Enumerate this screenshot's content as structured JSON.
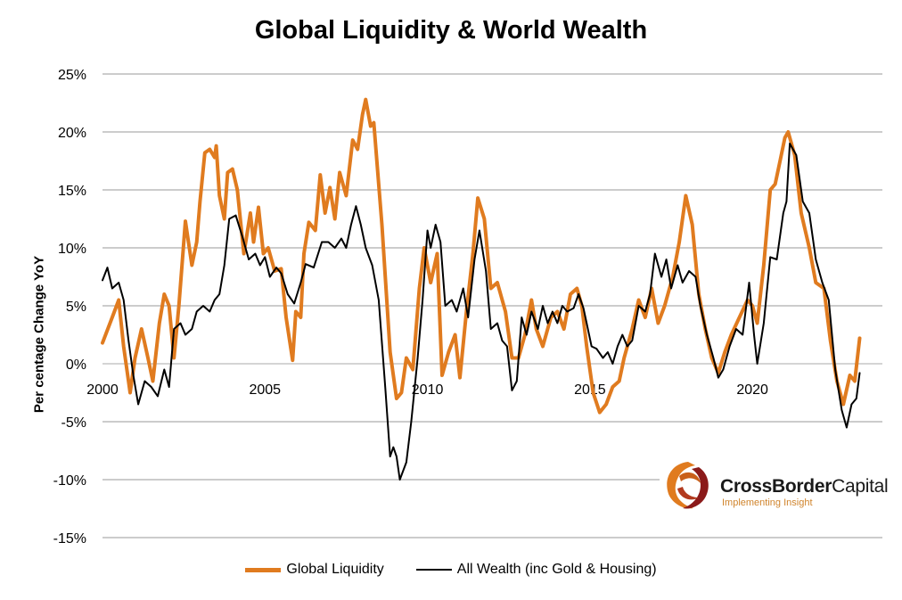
{
  "chart_data": {
    "type": "line",
    "title": "Global Liquidity & World Wealth",
    "ylabel": "Per centage Change YoY",
    "xlabel": "",
    "ylim": [
      -15,
      25
    ],
    "xlim": [
      2000,
      2024
    ],
    "y_ticks": [
      "25%",
      "20%",
      "15%",
      "10%",
      "5%",
      "0%",
      "-5%",
      "-10%",
      "-15%"
    ],
    "x_ticks": [
      "2000",
      "2005",
      "2010",
      "2015",
      "2020"
    ],
    "grid": true,
    "legend_position": "bottom-center",
    "series": [
      {
        "name": "Global Liquidity",
        "color": "#E07B1F",
        "points": [
          [
            2000.0,
            1.8
          ],
          [
            2000.3,
            4.0
          ],
          [
            2000.5,
            5.5
          ],
          [
            2000.65,
            1.5
          ],
          [
            2000.85,
            -2.5
          ],
          [
            2001.0,
            0.5
          ],
          [
            2001.2,
            3.0
          ],
          [
            2001.4,
            0.5
          ],
          [
            2001.55,
            -1.5
          ],
          [
            2001.75,
            3.5
          ],
          [
            2001.9,
            6.0
          ],
          [
            2002.05,
            5.0
          ],
          [
            2002.2,
            0.5
          ],
          [
            2002.35,
            5.0
          ],
          [
            2002.55,
            12.3
          ],
          [
            2002.75,
            8.5
          ],
          [
            2002.9,
            10.5
          ],
          [
            2003.0,
            14.0
          ],
          [
            2003.15,
            18.2
          ],
          [
            2003.3,
            18.5
          ],
          [
            2003.45,
            17.8
          ],
          [
            2003.5,
            18.8
          ],
          [
            2003.6,
            14.5
          ],
          [
            2003.75,
            12.5
          ],
          [
            2003.85,
            16.5
          ],
          [
            2004.0,
            16.8
          ],
          [
            2004.15,
            15.0
          ],
          [
            2004.35,
            9.5
          ],
          [
            2004.55,
            13.0
          ],
          [
            2004.65,
            10.5
          ],
          [
            2004.8,
            13.5
          ],
          [
            2004.95,
            9.5
          ],
          [
            2005.1,
            10.0
          ],
          [
            2005.3,
            8.0
          ],
          [
            2005.5,
            8.2
          ],
          [
            2005.65,
            4.0
          ],
          [
            2005.85,
            0.3
          ],
          [
            2005.95,
            4.5
          ],
          [
            2006.1,
            4.0
          ],
          [
            2006.2,
            9.5
          ],
          [
            2006.35,
            12.2
          ],
          [
            2006.55,
            11.5
          ],
          [
            2006.7,
            16.3
          ],
          [
            2006.85,
            13.0
          ],
          [
            2007.0,
            15.2
          ],
          [
            2007.15,
            12.5
          ],
          [
            2007.3,
            16.5
          ],
          [
            2007.5,
            14.5
          ],
          [
            2007.7,
            19.3
          ],
          [
            2007.85,
            18.5
          ],
          [
            2008.0,
            21.5
          ],
          [
            2008.1,
            22.8
          ],
          [
            2008.25,
            20.5
          ],
          [
            2008.35,
            20.8
          ],
          [
            2008.6,
            12.0
          ],
          [
            2008.85,
            1.0
          ],
          [
            2009.05,
            -3.0
          ],
          [
            2009.2,
            -2.5
          ],
          [
            2009.35,
            0.5
          ],
          [
            2009.55,
            -0.5
          ],
          [
            2009.75,
            6.5
          ],
          [
            2009.9,
            10.0
          ],
          [
            2010.1,
            7.0
          ],
          [
            2010.3,
            9.5
          ],
          [
            2010.45,
            -1.0
          ],
          [
            2010.65,
            1.0
          ],
          [
            2010.85,
            2.5
          ],
          [
            2011.0,
            -1.2
          ],
          [
            2011.2,
            4.5
          ],
          [
            2011.4,
            9.5
          ],
          [
            2011.55,
            14.3
          ],
          [
            2011.75,
            12.5
          ],
          [
            2011.95,
            6.5
          ],
          [
            2012.15,
            7.0
          ],
          [
            2012.4,
            4.5
          ],
          [
            2012.6,
            0.5
          ],
          [
            2012.8,
            0.5
          ],
          [
            2013.0,
            2.5
          ],
          [
            2013.2,
            5.5
          ],
          [
            2013.35,
            3.0
          ],
          [
            2013.55,
            1.5
          ],
          [
            2013.8,
            4.0
          ],
          [
            2014.0,
            4.5
          ],
          [
            2014.2,
            3.0
          ],
          [
            2014.4,
            6.0
          ],
          [
            2014.6,
            6.5
          ],
          [
            2014.75,
            5.0
          ],
          [
            2014.9,
            1.5
          ],
          [
            2015.1,
            -2.5
          ],
          [
            2015.3,
            -4.2
          ],
          [
            2015.5,
            -3.5
          ],
          [
            2015.7,
            -2.0
          ],
          [
            2015.9,
            -1.5
          ],
          [
            2016.05,
            0.5
          ],
          [
            2016.3,
            3.0
          ],
          [
            2016.5,
            5.5
          ],
          [
            2016.7,
            4.0
          ],
          [
            2016.9,
            6.5
          ],
          [
            2017.1,
            3.5
          ],
          [
            2017.3,
            5.0
          ],
          [
            2017.55,
            7.5
          ],
          [
            2017.75,
            10.5
          ],
          [
            2017.95,
            14.5
          ],
          [
            2018.15,
            12.0
          ],
          [
            2018.35,
            6.0
          ],
          [
            2018.55,
            3.0
          ],
          [
            2018.75,
            0.5
          ],
          [
            2018.95,
            -0.8
          ],
          [
            2019.15,
            1.0
          ],
          [
            2019.35,
            2.5
          ],
          [
            2019.6,
            4.0
          ],
          [
            2019.85,
            5.5
          ],
          [
            2020.0,
            5.0
          ],
          [
            2020.15,
            3.5
          ],
          [
            2020.35,
            8.5
          ],
          [
            2020.55,
            15.0
          ],
          [
            2020.7,
            15.5
          ],
          [
            2020.85,
            17.5
          ],
          [
            2021.0,
            19.5
          ],
          [
            2021.1,
            20.0
          ],
          [
            2021.3,
            18.0
          ],
          [
            2021.5,
            13.0
          ],
          [
            2021.75,
            10.0
          ],
          [
            2021.95,
            7.0
          ],
          [
            2022.2,
            6.5
          ],
          [
            2022.4,
            2.0
          ],
          [
            2022.6,
            -1.5
          ],
          [
            2022.8,
            -3.5
          ],
          [
            2023.0,
            -1.0
          ],
          [
            2023.15,
            -1.5
          ],
          [
            2023.3,
            2.2
          ]
        ]
      },
      {
        "name": "All Wealth (inc Gold & Housing)",
        "color": "#000000",
        "points": [
          [
            2000.0,
            7.2
          ],
          [
            2000.15,
            8.3
          ],
          [
            2000.3,
            6.5
          ],
          [
            2000.5,
            7.0
          ],
          [
            2000.65,
            5.5
          ],
          [
            2000.8,
            2.0
          ],
          [
            2000.95,
            -1.0
          ],
          [
            2001.1,
            -3.5
          ],
          [
            2001.3,
            -1.5
          ],
          [
            2001.5,
            -2.0
          ],
          [
            2001.7,
            -2.8
          ],
          [
            2001.9,
            -0.5
          ],
          [
            2002.05,
            -2.0
          ],
          [
            2002.2,
            3.0
          ],
          [
            2002.4,
            3.5
          ],
          [
            2002.55,
            2.5
          ],
          [
            2002.75,
            3.0
          ],
          [
            2002.9,
            4.5
          ],
          [
            2003.1,
            5.0
          ],
          [
            2003.3,
            4.5
          ],
          [
            2003.45,
            5.5
          ],
          [
            2003.6,
            6.0
          ],
          [
            2003.75,
            8.5
          ],
          [
            2003.9,
            12.5
          ],
          [
            2004.1,
            12.8
          ],
          [
            2004.3,
            11.0
          ],
          [
            2004.5,
            9.0
          ],
          [
            2004.7,
            9.5
          ],
          [
            2004.85,
            8.5
          ],
          [
            2005.0,
            9.2
          ],
          [
            2005.15,
            7.5
          ],
          [
            2005.35,
            8.3
          ],
          [
            2005.5,
            7.8
          ],
          [
            2005.7,
            6.0
          ],
          [
            2005.9,
            5.2
          ],
          [
            2006.1,
            7.0
          ],
          [
            2006.25,
            8.6
          ],
          [
            2006.5,
            8.3
          ],
          [
            2006.75,
            10.5
          ],
          [
            2006.95,
            10.5
          ],
          [
            2007.15,
            10.0
          ],
          [
            2007.35,
            10.8
          ],
          [
            2007.5,
            10.0
          ],
          [
            2007.65,
            12.0
          ],
          [
            2007.8,
            13.6
          ],
          [
            2007.95,
            12.0
          ],
          [
            2008.1,
            10.0
          ],
          [
            2008.3,
            8.5
          ],
          [
            2008.5,
            5.5
          ],
          [
            2008.7,
            -2.0
          ],
          [
            2008.85,
            -8.0
          ],
          [
            2008.95,
            -7.2
          ],
          [
            2009.05,
            -8.0
          ],
          [
            2009.15,
            -10.0
          ],
          [
            2009.35,
            -8.5
          ],
          [
            2009.5,
            -5.0
          ],
          [
            2009.7,
            0.5
          ],
          [
            2009.85,
            5.5
          ],
          [
            2010.0,
            11.5
          ],
          [
            2010.1,
            10.0
          ],
          [
            2010.25,
            12.0
          ],
          [
            2010.4,
            10.5
          ],
          [
            2010.55,
            5.0
          ],
          [
            2010.75,
            5.5
          ],
          [
            2010.9,
            4.5
          ],
          [
            2011.1,
            6.5
          ],
          [
            2011.25,
            4.0
          ],
          [
            2011.45,
            9.0
          ],
          [
            2011.6,
            11.5
          ],
          [
            2011.8,
            8.0
          ],
          [
            2011.95,
            3.0
          ],
          [
            2012.15,
            3.5
          ],
          [
            2012.3,
            2.0
          ],
          [
            2012.45,
            1.5
          ],
          [
            2012.6,
            -2.3
          ],
          [
            2012.75,
            -1.5
          ],
          [
            2012.9,
            4.0
          ],
          [
            2013.05,
            2.5
          ],
          [
            2013.2,
            4.5
          ],
          [
            2013.4,
            3.0
          ],
          [
            2013.55,
            5.0
          ],
          [
            2013.7,
            3.5
          ],
          [
            2013.85,
            4.5
          ],
          [
            2014.0,
            3.5
          ],
          [
            2014.15,
            5.0
          ],
          [
            2014.3,
            4.5
          ],
          [
            2014.5,
            4.8
          ],
          [
            2014.65,
            6.0
          ],
          [
            2014.8,
            4.8
          ],
          [
            2014.9,
            3.5
          ],
          [
            2015.05,
            1.5
          ],
          [
            2015.2,
            1.3
          ],
          [
            2015.4,
            0.5
          ],
          [
            2015.55,
            1.0
          ],
          [
            2015.7,
            0.0
          ],
          [
            2015.85,
            1.5
          ],
          [
            2016.0,
            2.5
          ],
          [
            2016.15,
            1.5
          ],
          [
            2016.3,
            2.0
          ],
          [
            2016.5,
            5.0
          ],
          [
            2016.7,
            4.5
          ],
          [
            2016.85,
            6.0
          ],
          [
            2017.0,
            9.5
          ],
          [
            2017.2,
            7.5
          ],
          [
            2017.35,
            9.0
          ],
          [
            2017.5,
            6.5
          ],
          [
            2017.7,
            8.5
          ],
          [
            2017.85,
            7.0
          ],
          [
            2018.05,
            8.0
          ],
          [
            2018.25,
            7.5
          ],
          [
            2018.4,
            5.0
          ],
          [
            2018.6,
            2.5
          ],
          [
            2018.8,
            0.5
          ],
          [
            2018.95,
            -1.2
          ],
          [
            2019.1,
            -0.5
          ],
          [
            2019.3,
            1.5
          ],
          [
            2019.5,
            3.0
          ],
          [
            2019.7,
            2.5
          ],
          [
            2019.9,
            7.0
          ],
          [
            2020.05,
            2.5
          ],
          [
            2020.15,
            0.0
          ],
          [
            2020.35,
            3.5
          ],
          [
            2020.55,
            9.2
          ],
          [
            2020.75,
            9.0
          ],
          [
            2020.95,
            13.0
          ],
          [
            2021.05,
            14.0
          ],
          [
            2021.15,
            19.0
          ],
          [
            2021.35,
            18.0
          ],
          [
            2021.55,
            14.0
          ],
          [
            2021.75,
            13.0
          ],
          [
            2021.95,
            9.0
          ],
          [
            2022.15,
            7.0
          ],
          [
            2022.35,
            5.5
          ],
          [
            2022.55,
            -0.5
          ],
          [
            2022.75,
            -4.0
          ],
          [
            2022.9,
            -5.5
          ],
          [
            2023.05,
            -3.5
          ],
          [
            2023.2,
            -3.0
          ],
          [
            2023.3,
            -0.8
          ]
        ]
      }
    ],
    "annotations": [
      {
        "name": "logo",
        "text_main_1": "CrossBorder",
        "text_main_2": "Capital",
        "tagline": "Implementing Insight"
      }
    ]
  }
}
